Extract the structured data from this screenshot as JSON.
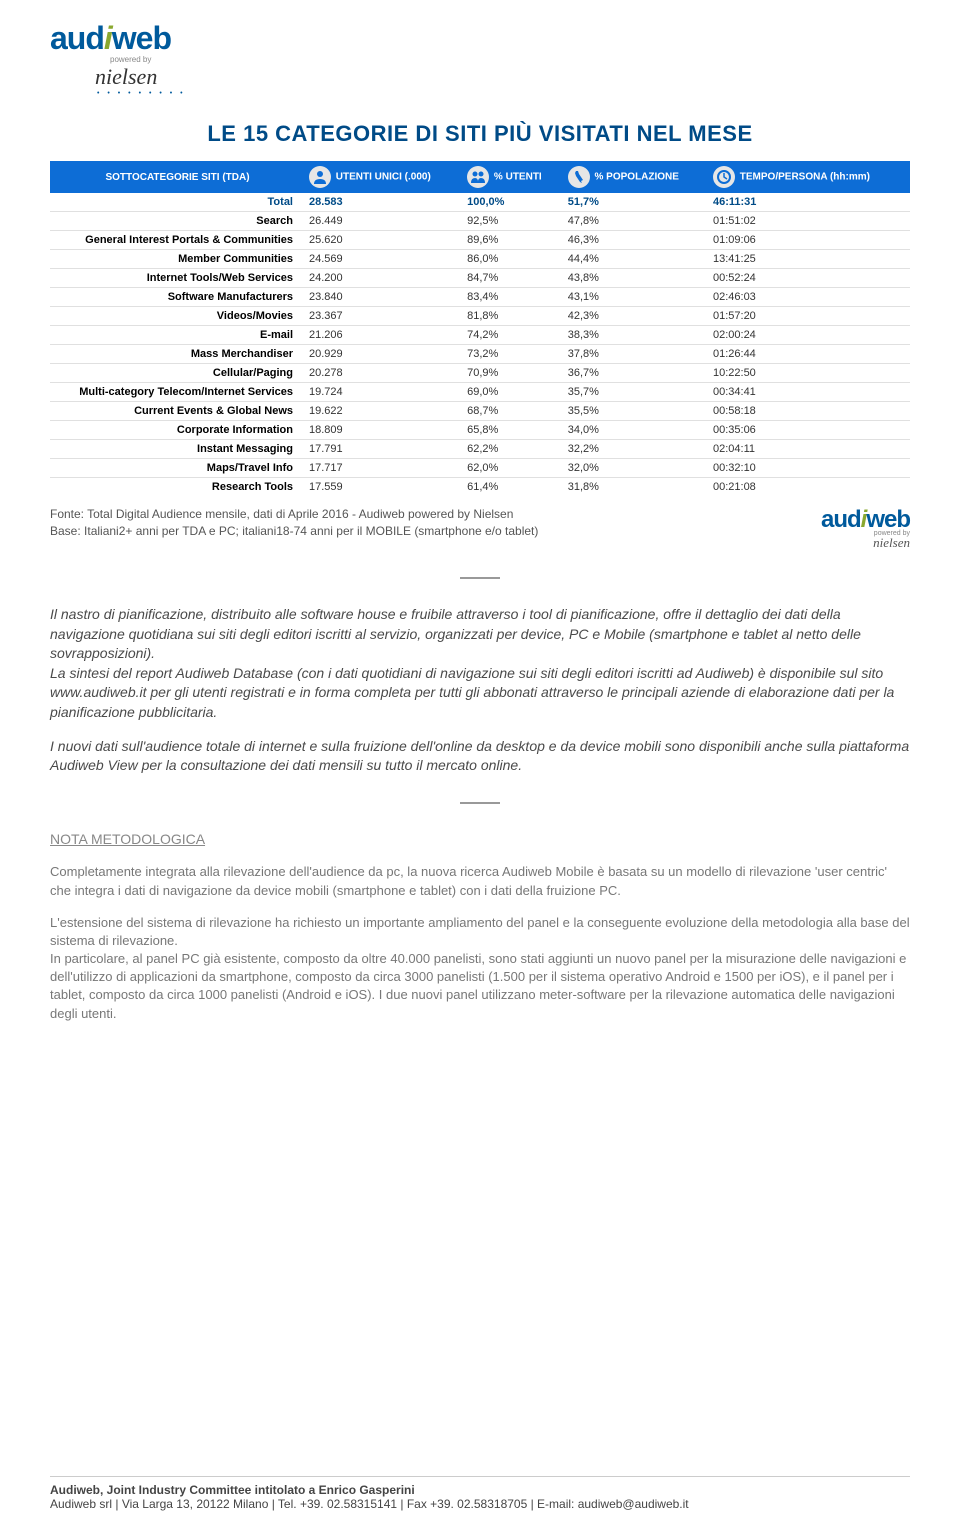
{
  "logo": {
    "text_a": "aud",
    "text_slash": "i",
    "text_b": "web",
    "powered": "powered by",
    "nielsen": "nielsen"
  },
  "chart": {
    "title": "LE 15 CATEGORIE DI SITI PIÙ VISITATI NEL MESE",
    "title_color": "#004b87",
    "title_fontsize": 22,
    "header_bg": "#0d6dd6",
    "header_fg": "#ffffff",
    "row_border": "#e0e0e0",
    "total_color": "#004b87",
    "columns": [
      "SOTTOCATEGORIE SITI (TDA)",
      "UTENTI UNICI (.000)",
      "% UTENTI",
      "% POPOLAZIONE",
      "TEMPO/PERSONA (hh:mm)"
    ],
    "col_icons": [
      "",
      "person-icon",
      "people-icon",
      "italy-icon",
      "clock-icon"
    ],
    "col_widths": [
      "255px",
      "140px",
      "140px",
      "150px",
      "auto"
    ],
    "rows": [
      {
        "label": "Total",
        "utenti": "28.583",
        "pct_utenti": "100,0%",
        "pct_pop": "51,7%",
        "tempo": "46:11:31",
        "is_total": true
      },
      {
        "label": "Search",
        "utenti": "26.449",
        "pct_utenti": "92,5%",
        "pct_pop": "47,8%",
        "tempo": "01:51:02"
      },
      {
        "label": "General Interest Portals & Communities",
        "utenti": "25.620",
        "pct_utenti": "89,6%",
        "pct_pop": "46,3%",
        "tempo": "01:09:06"
      },
      {
        "label": "Member Communities",
        "utenti": "24.569",
        "pct_utenti": "86,0%",
        "pct_pop": "44,4%",
        "tempo": "13:41:25"
      },
      {
        "label": "Internet Tools/Web Services",
        "utenti": "24.200",
        "pct_utenti": "84,7%",
        "pct_pop": "43,8%",
        "tempo": "00:52:24"
      },
      {
        "label": "Software Manufacturers",
        "utenti": "23.840",
        "pct_utenti": "83,4%",
        "pct_pop": "43,1%",
        "tempo": "02:46:03"
      },
      {
        "label": "Videos/Movies",
        "utenti": "23.367",
        "pct_utenti": "81,8%",
        "pct_pop": "42,3%",
        "tempo": "01:57:20"
      },
      {
        "label": "E-mail",
        "utenti": "21.206",
        "pct_utenti": "74,2%",
        "pct_pop": "38,3%",
        "tempo": "02:00:24"
      },
      {
        "label": "Mass Merchandiser",
        "utenti": "20.929",
        "pct_utenti": "73,2%",
        "pct_pop": "37,8%",
        "tempo": "01:26:44"
      },
      {
        "label": "Cellular/Paging",
        "utenti": "20.278",
        "pct_utenti": "70,9%",
        "pct_pop": "36,7%",
        "tempo": "10:22:50"
      },
      {
        "label": "Multi-category Telecom/Internet Services",
        "utenti": "19.724",
        "pct_utenti": "69,0%",
        "pct_pop": "35,7%",
        "tempo": "00:34:41"
      },
      {
        "label": "Current Events & Global News",
        "utenti": "19.622",
        "pct_utenti": "68,7%",
        "pct_pop": "35,5%",
        "tempo": "00:58:18"
      },
      {
        "label": "Corporate Information",
        "utenti": "18.809",
        "pct_utenti": "65,8%",
        "pct_pop": "34,0%",
        "tempo": "00:35:06"
      },
      {
        "label": "Instant Messaging",
        "utenti": "17.791",
        "pct_utenti": "62,2%",
        "pct_pop": "32,2%",
        "tempo": "02:04:11"
      },
      {
        "label": "Maps/Travel Info",
        "utenti": "17.717",
        "pct_utenti": "62,0%",
        "pct_pop": "32,0%",
        "tempo": "00:32:10"
      },
      {
        "label": "Research Tools",
        "utenti": "17.559",
        "pct_utenti": "61,4%",
        "pct_pop": "31,8%",
        "tempo": "00:21:08"
      }
    ],
    "source_line1": "Fonte: Total Digital Audience mensile, dati di Aprile 2016 - Audiweb powered by Nielsen",
    "source_line2": "Base: Italiani2+ anni per TDA e PC; italiani18-74 anni per il MOBILE (smartphone e/o tablet)"
  },
  "body": {
    "p1": "Il nastro di pianificazione, distribuito alle software house e fruibile attraverso i tool di pianificazione, offre il dettaglio dei dati della navigazione quotidiana sui siti degli editori iscritti al servizio, organizzati per device, PC e Mobile (smartphone e tablet al netto delle sovrapposizioni).",
    "p2": "La sintesi del report Audiweb Database (con i dati quotidiani di navigazione sui siti degli editori iscritti ad Audiweb) è disponibile sul sito www.audiweb.it per gli utenti registrati e in forma completa per tutti gli abbonati attraverso le principali aziende di elaborazione dati per la pianificazione pubblicitaria.",
    "p3": "I nuovi dati sull'audience totale di internet e sulla fruizione dell'online da desktop e da device mobili sono disponibili anche sulla piattaforma Audiweb View per la consultazione dei dati mensili su tutto il mercato online.",
    "nota_title": "NOTA METODOLOGICA",
    "nota_p1": "Completamente integrata alla rilevazione dell'audience da pc, la nuova ricerca Audiweb Mobile è basata su un modello di rilevazione 'user centric' che integra i dati di navigazione da device mobili (smartphone e tablet) con i dati della fruizione PC.",
    "nota_p2": "L'estensione del sistema di rilevazione ha richiesto un importante ampliamento del panel e la conseguente evoluzione della metodologia alla base del sistema di rilevazione.",
    "nota_p3": "In particolare, al panel PC già esistente, composto da oltre 40.000 panelisti, sono stati aggiunti un nuovo panel per la misurazione delle navigazioni e dell'utilizzo di applicazioni da smartphone, composto da circa 3000 panelisti (1.500 per il sistema operativo Android e 1500 per iOS), e il panel per i tablet, composto da circa 1000 panelisti (Android e iOS). I due nuovi panel utilizzano meter-software per la rilevazione automatica delle navigazioni degli utenti."
  },
  "footer": {
    "line1": "Audiweb, Joint Industry Committee intitolato a Enrico Gasperini",
    "line2": "Audiweb srl  |  Via Larga 13, 20122 Milano  |  Tel. +39. 02.58315141  |  Fax +39. 02.58318705  |  E-mail: audiweb@audiweb.it"
  }
}
